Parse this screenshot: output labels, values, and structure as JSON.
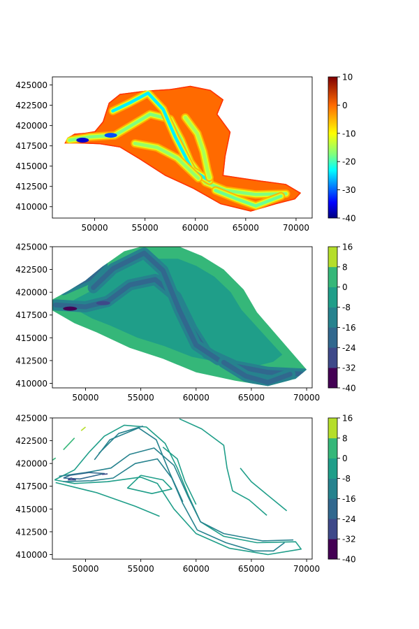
{
  "chart_data": [
    {
      "type": "heatmap",
      "title": "",
      "xlabel": "",
      "ylabel": "",
      "xlim": [
        45800,
        71600
      ],
      "ylim": [
        408600,
        426000
      ],
      "xticks": [
        50000,
        55000,
        60000,
        65000,
        70000
      ],
      "yticks": [
        410000,
        412500,
        415000,
        417500,
        420000,
        422500,
        425000
      ],
      "colormap": "jet",
      "colorbar": {
        "range": [
          -40,
          10
        ],
        "ticks": [
          -40,
          -30,
          -20,
          -10,
          0,
          10
        ]
      },
      "outline": [
        [
          47000,
          417800
        ],
        [
          47300,
          418500
        ],
        [
          48000,
          419000
        ],
        [
          49000,
          419100
        ],
        [
          50000,
          419300
        ],
        [
          50800,
          420500
        ],
        [
          51400,
          422800
        ],
        [
          52500,
          423900
        ],
        [
          55000,
          424300
        ],
        [
          57500,
          424500
        ],
        [
          59500,
          424900
        ],
        [
          61500,
          424400
        ],
        [
          62800,
          423200
        ],
        [
          62200,
          421400
        ],
        [
          63500,
          419200
        ],
        [
          63000,
          416200
        ],
        [
          62800,
          413900
        ],
        [
          64400,
          413600
        ],
        [
          66600,
          413200
        ],
        [
          69000,
          412800
        ],
        [
          70500,
          411700
        ],
        [
          69900,
          410900
        ],
        [
          68000,
          410300
        ],
        [
          65500,
          409400
        ],
        [
          62500,
          410300
        ],
        [
          59800,
          412200
        ],
        [
          57000,
          413800
        ],
        [
          54500,
          415800
        ],
        [
          52500,
          417300
        ],
        [
          50500,
          417700
        ],
        [
          48500,
          417800
        ],
        [
          47000,
          417800
        ]
      ],
      "channels": [
        {
          "depth": -15,
          "points": [
            [
              47500,
              418200
            ],
            [
              49500,
              418600
            ],
            [
              52000,
              418800
            ],
            [
              53500,
              419900
            ],
            [
              55500,
              421400
            ],
            [
              57500,
              420800
            ],
            [
              58600,
              418200
            ],
            [
              59500,
              415500
            ],
            [
              61000,
              413000
            ],
            [
              63000,
              412000
            ],
            [
              66000,
              411500
            ],
            [
              69000,
              411600
            ]
          ]
        },
        {
          "depth": -22,
          "points": [
            [
              51800,
              421800
            ],
            [
              53500,
              422800
            ],
            [
              55300,
              424000
            ],
            [
              56800,
              422000
            ],
            [
              58000,
              418600
            ],
            [
              59700,
              414500
            ],
            [
              61400,
              413200
            ]
          ]
        },
        {
          "depth": -14,
          "points": [
            [
              54000,
              417800
            ],
            [
              56200,
              417300
            ],
            [
              58200,
              416000
            ],
            [
              59200,
              414800
            ],
            [
              60300,
              413500
            ]
          ]
        },
        {
          "depth": -13,
          "points": [
            [
              59000,
              421000
            ],
            [
              60200,
              419000
            ],
            [
              60800,
              416800
            ],
            [
              61200,
              414500
            ],
            [
              61400,
              413600
            ]
          ]
        },
        {
          "depth": -16,
          "points": [
            [
              62000,
              412000
            ],
            [
              64000,
              411000
            ],
            [
              66000,
              410100
            ],
            [
              68500,
              411300
            ]
          ]
        }
      ],
      "deep_spots": [
        {
          "x": 48800,
          "y": 418200,
          "value": -36
        },
        {
          "x": 51600,
          "y": 418800,
          "value": -30
        }
      ]
    },
    {
      "type": "heatmap",
      "title": "",
      "xlabel": "",
      "ylabel": "",
      "xlim": [
        47000,
        70500
      ],
      "ylim": [
        409500,
        425000
      ],
      "xticks": [
        50000,
        55000,
        60000,
        65000,
        70000
      ],
      "yticks": [
        410000,
        412500,
        415000,
        417500,
        420000,
        422500,
        425000
      ],
      "levels": [
        -40,
        -32,
        -24,
        -16,
        -8,
        0,
        8,
        16
      ],
      "level_colors": [
        "#440154",
        "#3e4989",
        "#31688e",
        "#26828e",
        "#1f9e89",
        "#35b779",
        "#b5de2b",
        "#fde725"
      ],
      "outline": [
        [
          47000,
          419200
        ],
        [
          48500,
          420200
        ],
        [
          50000,
          421300
        ],
        [
          51500,
          422800
        ],
        [
          53500,
          424500
        ],
        [
          55000,
          425000
        ],
        [
          58500,
          425000
        ],
        [
          60500,
          424000
        ],
        [
          62500,
          422500
        ],
        [
          64300,
          420300
        ],
        [
          65500,
          417800
        ],
        [
          67500,
          415000
        ],
        [
          70000,
          411500
        ],
        [
          69000,
          410500
        ],
        [
          66500,
          409700
        ],
        [
          63500,
          410300
        ],
        [
          60000,
          411200
        ],
        [
          57000,
          412700
        ],
        [
          54000,
          413900
        ],
        [
          51000,
          415600
        ],
        [
          49000,
          416600
        ],
        [
          47000,
          418000
        ]
      ],
      "interior_level": -8,
      "margin_level": 0,
      "channels": [
        {
          "depth": -22,
          "points": [
            [
              47300,
              418600
            ],
            [
              50000,
              418400
            ],
            [
              52000,
              419000
            ],
            [
              54000,
              420800
            ],
            [
              56300,
              421400
            ],
            [
              58200,
              419500
            ],
            [
              59600,
              416000
            ],
            [
              61000,
              413300
            ],
            [
              63500,
              411900
            ],
            [
              66500,
              411200
            ],
            [
              70000,
              411000
            ]
          ]
        },
        {
          "depth": -22,
          "points": [
            [
              50700,
              420500
            ],
            [
              52500,
              422600
            ],
            [
              55300,
              424300
            ],
            [
              57000,
              422400
            ],
            [
              58500,
              418000
            ],
            [
              60000,
              414200
            ],
            [
              62000,
              412600
            ]
          ]
        },
        {
          "depth": -18,
          "points": [
            [
              48000,
              420300
            ],
            [
              50300,
              421500
            ],
            [
              51500,
              423000
            ]
          ]
        },
        {
          "depth": -18,
          "points": [
            [
              62500,
              412300
            ],
            [
              64500,
              410800
            ],
            [
              66500,
              410100
            ],
            [
              68500,
              411000
            ]
          ]
        }
      ],
      "deep_spots": [
        {
          "x": 48600,
          "y": 418200,
          "value": -36
        },
        {
          "x": 51600,
          "y": 418800,
          "value": -30
        }
      ]
    },
    {
      "type": "heatmap",
      "title": "",
      "xlabel": "",
      "ylabel": "",
      "xlim": [
        47000,
        70500
      ],
      "ylim": [
        409500,
        425000
      ],
      "xticks": [
        50000,
        55000,
        60000,
        65000,
        70000
      ],
      "yticks": [
        410000,
        412500,
        415000,
        417500,
        420000,
        422500,
        425000
      ],
      "levels": [
        -40,
        -32,
        -24,
        -16,
        -8,
        0,
        8,
        16
      ],
      "level_colors": [
        "#440154",
        "#3e4989",
        "#31688e",
        "#26828e",
        "#1f9e89",
        "#35b779",
        "#b5de2b",
        "#fde725"
      ],
      "contours": [
        {
          "level": -8,
          "points": [
            [
              47200,
              418200
            ],
            [
              49000,
              419300
            ],
            [
              50300,
              421200
            ],
            [
              51700,
              423000
            ],
            [
              53500,
              424200
            ],
            [
              55500,
              424000
            ],
            [
              57200,
              422200
            ],
            [
              58300,
              419500
            ],
            [
              59300,
              416500
            ],
            [
              60400,
              413600
            ],
            [
              62500,
              412000
            ],
            [
              65500,
              411300
            ],
            [
              69000,
              411400
            ],
            [
              69500,
              410600
            ],
            [
              66500,
              410000
            ],
            [
              63000,
              410700
            ],
            [
              60000,
              412300
            ],
            [
              58000,
              415000
            ],
            [
              56500,
              417800
            ],
            [
              55000,
              418500
            ],
            [
              52000,
              418000
            ],
            [
              49000,
              417800
            ],
            [
              47200,
              418200
            ]
          ]
        },
        {
          "level": -8,
          "points": [
            [
              58500,
              424900
            ],
            [
              60500,
              423800
            ],
            [
              62500,
              422000
            ],
            [
              62800,
              419500
            ],
            [
              63300,
              417000
            ],
            [
              64800,
              416000
            ],
            [
              66400,
              414300
            ]
          ]
        },
        {
          "level": -8,
          "points": [
            [
              47300,
              417900
            ],
            [
              51000,
              416800
            ],
            [
              54500,
              415300
            ],
            [
              56700,
              414200
            ]
          ]
        },
        {
          "level": -8,
          "points": [
            [
              57000,
              421800
            ],
            [
              58300,
              420500
            ],
            [
              59000,
              418000
            ],
            [
              60000,
              415500
            ]
          ]
        },
        {
          "level": -8,
          "points": [
            [
              64000,
              419500
            ],
            [
              65000,
              418000
            ],
            [
              66200,
              416800
            ],
            [
              67500,
              415500
            ],
            [
              68200,
              414800
            ]
          ]
        },
        {
          "level": -8,
          "points": [
            [
              55000,
              418700
            ],
            [
              57000,
              418200
            ],
            [
              57800,
              417200
            ],
            [
              56000,
              416700
            ],
            [
              53800,
              417300
            ],
            [
              55000,
              418700
            ]
          ]
        },
        {
          "level": -16,
          "points": [
            [
              47600,
              418600
            ],
            [
              50000,
              419000
            ],
            [
              52300,
              419500
            ],
            [
              54000,
              421000
            ],
            [
              56200,
              421700
            ],
            [
              58000,
              419800
            ],
            [
              59300,
              416300
            ],
            [
              60400,
              413600
            ],
            [
              62500,
              412300
            ],
            [
              66000,
              411500
            ],
            [
              68800,
              411600
            ]
          ]
        },
        {
          "level": -16,
          "points": [
            [
              48000,
              418000
            ],
            [
              50500,
              418100
            ],
            [
              52500,
              418400
            ],
            [
              54500,
              420000
            ],
            [
              56500,
              420500
            ],
            [
              57800,
              418400
            ],
            [
              58800,
              415600
            ],
            [
              60100,
              412700
            ],
            [
              62700,
              411300
            ],
            [
              65200,
              410400
            ],
            [
              67000,
              410400
            ],
            [
              68000,
              411300
            ]
          ]
        },
        {
          "level": -16,
          "points": [
            [
              50800,
              420400
            ],
            [
              52200,
              422600
            ],
            [
              54800,
              423900
            ],
            [
              56400,
              422600
            ],
            [
              57600,
              419000
            ],
            [
              58800,
              415800
            ]
          ]
        },
        {
          "level": -16,
          "points": [
            [
              51200,
              421100
            ],
            [
              53000,
              423300
            ],
            [
              55200,
              424100
            ]
          ]
        },
        {
          "level": -24,
          "points": [
            [
              48000,
              418400
            ],
            [
              49500,
              418300
            ],
            [
              51700,
              418900
            ],
            [
              50300,
              419000
            ],
            [
              48600,
              418700
            ],
            [
              48000,
              418400
            ]
          ]
        },
        {
          "level": -32,
          "points": [
            [
              48400,
              418200
            ],
            [
              49100,
              418200
            ],
            [
              48700,
              418400
            ],
            [
              48400,
              418200
            ]
          ]
        },
        {
          "level": -32,
          "points": [
            [
              51500,
              418800
            ],
            [
              52000,
              418850
            ]
          ]
        },
        {
          "level": 0,
          "points": [
            [
              48000,
              421500
            ],
            [
              49000,
              422800
            ]
          ]
        },
        {
          "level": 0,
          "points": [
            [
              46800,
              420200
            ],
            [
              47300,
              420600
            ]
          ]
        },
        {
          "level": 8,
          "points": [
            [
              49600,
              423600
            ],
            [
              50000,
              424000
            ]
          ]
        }
      ]
    }
  ]
}
